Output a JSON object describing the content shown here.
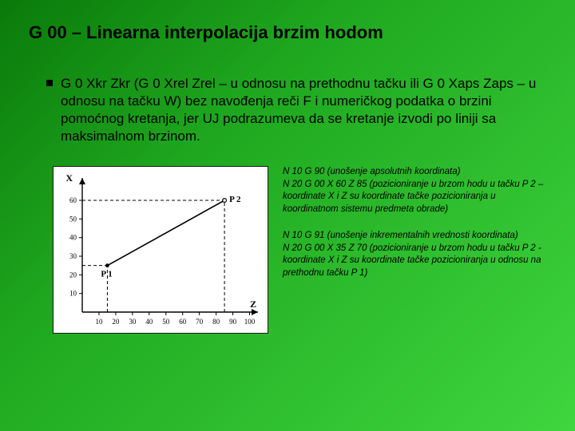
{
  "slide": {
    "title": "G 00 – Linearna interpolacija brzim hodom",
    "bullet_text": "G 0 Xkr Zkr (G 0 Xrel Zrel – u odnosu na prethodnu tačku ili G 0 Xaps Zaps – u odnosu na tačku W) bez navođenja reči F i numeričkog podatka o brzini pomoćnog kretanja, jer UJ podrazumeva da se kretanje izvodi po liniji sa maksimalnom brzinom.",
    "background_gradient": [
      "#0a7a0a",
      "#1fa81f",
      "#3fd63f"
    ]
  },
  "chart": {
    "type": "line",
    "x_axis_label": "Z",
    "y_axis_label": "X",
    "x_ticks": [
      10,
      20,
      30,
      40,
      50,
      60,
      70,
      80,
      90,
      100
    ],
    "y_ticks": [
      10,
      20,
      30,
      40,
      50,
      60
    ],
    "p1": {
      "label": "P 1",
      "x": 25,
      "z": 15
    },
    "p2": {
      "label": "P 2",
      "x": 60,
      "z": 85
    },
    "axis_color": "#000000",
    "line_color": "#000000",
    "dash_color": "#000000",
    "tick_fontsize": 9,
    "label_fontsize": 12,
    "background": "#ffffff",
    "x_domain": [
      0,
      105
    ],
    "y_domain": [
      0,
      72
    ]
  },
  "right": {
    "p1": "N 10 G 90 (unošenje apsolutnih koordinata)\nN 20 G 00 X 60 Z 85 (pozicioniranje u brzom hodu u tačku P 2 – koordinate X i Z su koordinate tačke pozicioniranja u koordinatnom sistemu predmeta obrade)",
    "p2": "N 10 G 91 (unošenje inkrementalnih vrednosti koordinata)\nN 20 G 00 X 35 Z 70 (pozicioniranje u brzom hodu u tačku P 2 - koordinate X i Z su koordinate tačke pozicioniranja u odnosu na prethodnu tačku P 1)"
  }
}
